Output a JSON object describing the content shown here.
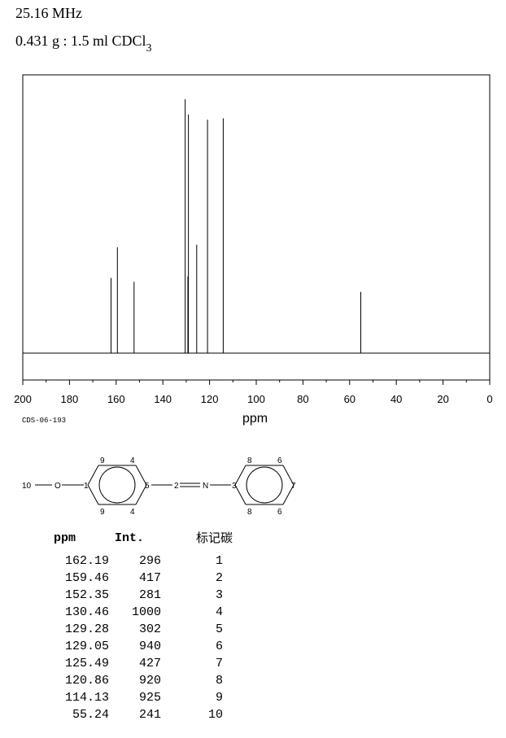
{
  "header": {
    "frequency": "25.16 MHz",
    "sample_main": "0.431 g : 1.5 ml CDCl",
    "sample_sub": "3"
  },
  "chart_data": {
    "type": "line",
    "xlabel": "ppm",
    "xlim": [
      200,
      0
    ],
    "x_ticks": [
      "200",
      "180",
      "160",
      "140",
      "120",
      "100",
      "80",
      "60",
      "40",
      "20",
      "0"
    ],
    "peaks": [
      {
        "ppm": 162.19,
        "int": 296
      },
      {
        "ppm": 159.46,
        "int": 417
      },
      {
        "ppm": 152.35,
        "int": 281
      },
      {
        "ppm": 130.46,
        "int": 1000
      },
      {
        "ppm": 129.28,
        "int": 302
      },
      {
        "ppm": 129.05,
        "int": 940
      },
      {
        "ppm": 125.49,
        "int": 427
      },
      {
        "ppm": 120.86,
        "int": 920
      },
      {
        "ppm": 114.13,
        "int": 925
      },
      {
        "ppm": 55.24,
        "int": 241
      }
    ]
  },
  "code": "CDS-06-193",
  "structure_labels": {
    "n10": "10",
    "o": "O",
    "n1": "1",
    "n9a": "9",
    "n9b": "9",
    "n4a": "4",
    "n4b": "4",
    "n5": "5",
    "n2": "2",
    "nN": "N",
    "n3": "3",
    "n8a": "8",
    "n8b": "8",
    "n6a": "6",
    "n6b": "6",
    "n7": "7"
  },
  "table": {
    "headers": {
      "ppm": "ppm",
      "int": "Int.",
      "assign": "标记碳"
    },
    "rows": [
      {
        "ppm": "162.19",
        "int": "296",
        "assign": "1"
      },
      {
        "ppm": "159.46",
        "int": "417",
        "assign": "2"
      },
      {
        "ppm": "152.35",
        "int": "281",
        "assign": "3"
      },
      {
        "ppm": "130.46",
        "int": "1000",
        "assign": "4"
      },
      {
        "ppm": "129.28",
        "int": "302",
        "assign": "5"
      },
      {
        "ppm": "129.05",
        "int": "940",
        "assign": "6"
      },
      {
        "ppm": "125.49",
        "int": "427",
        "assign": "7"
      },
      {
        "ppm": "120.86",
        "int": "920",
        "assign": "8"
      },
      {
        "ppm": "114.13",
        "int": "925",
        "assign": "9"
      },
      {
        "ppm": "55.24",
        "int": "241",
        "assign": "10"
      }
    ]
  }
}
